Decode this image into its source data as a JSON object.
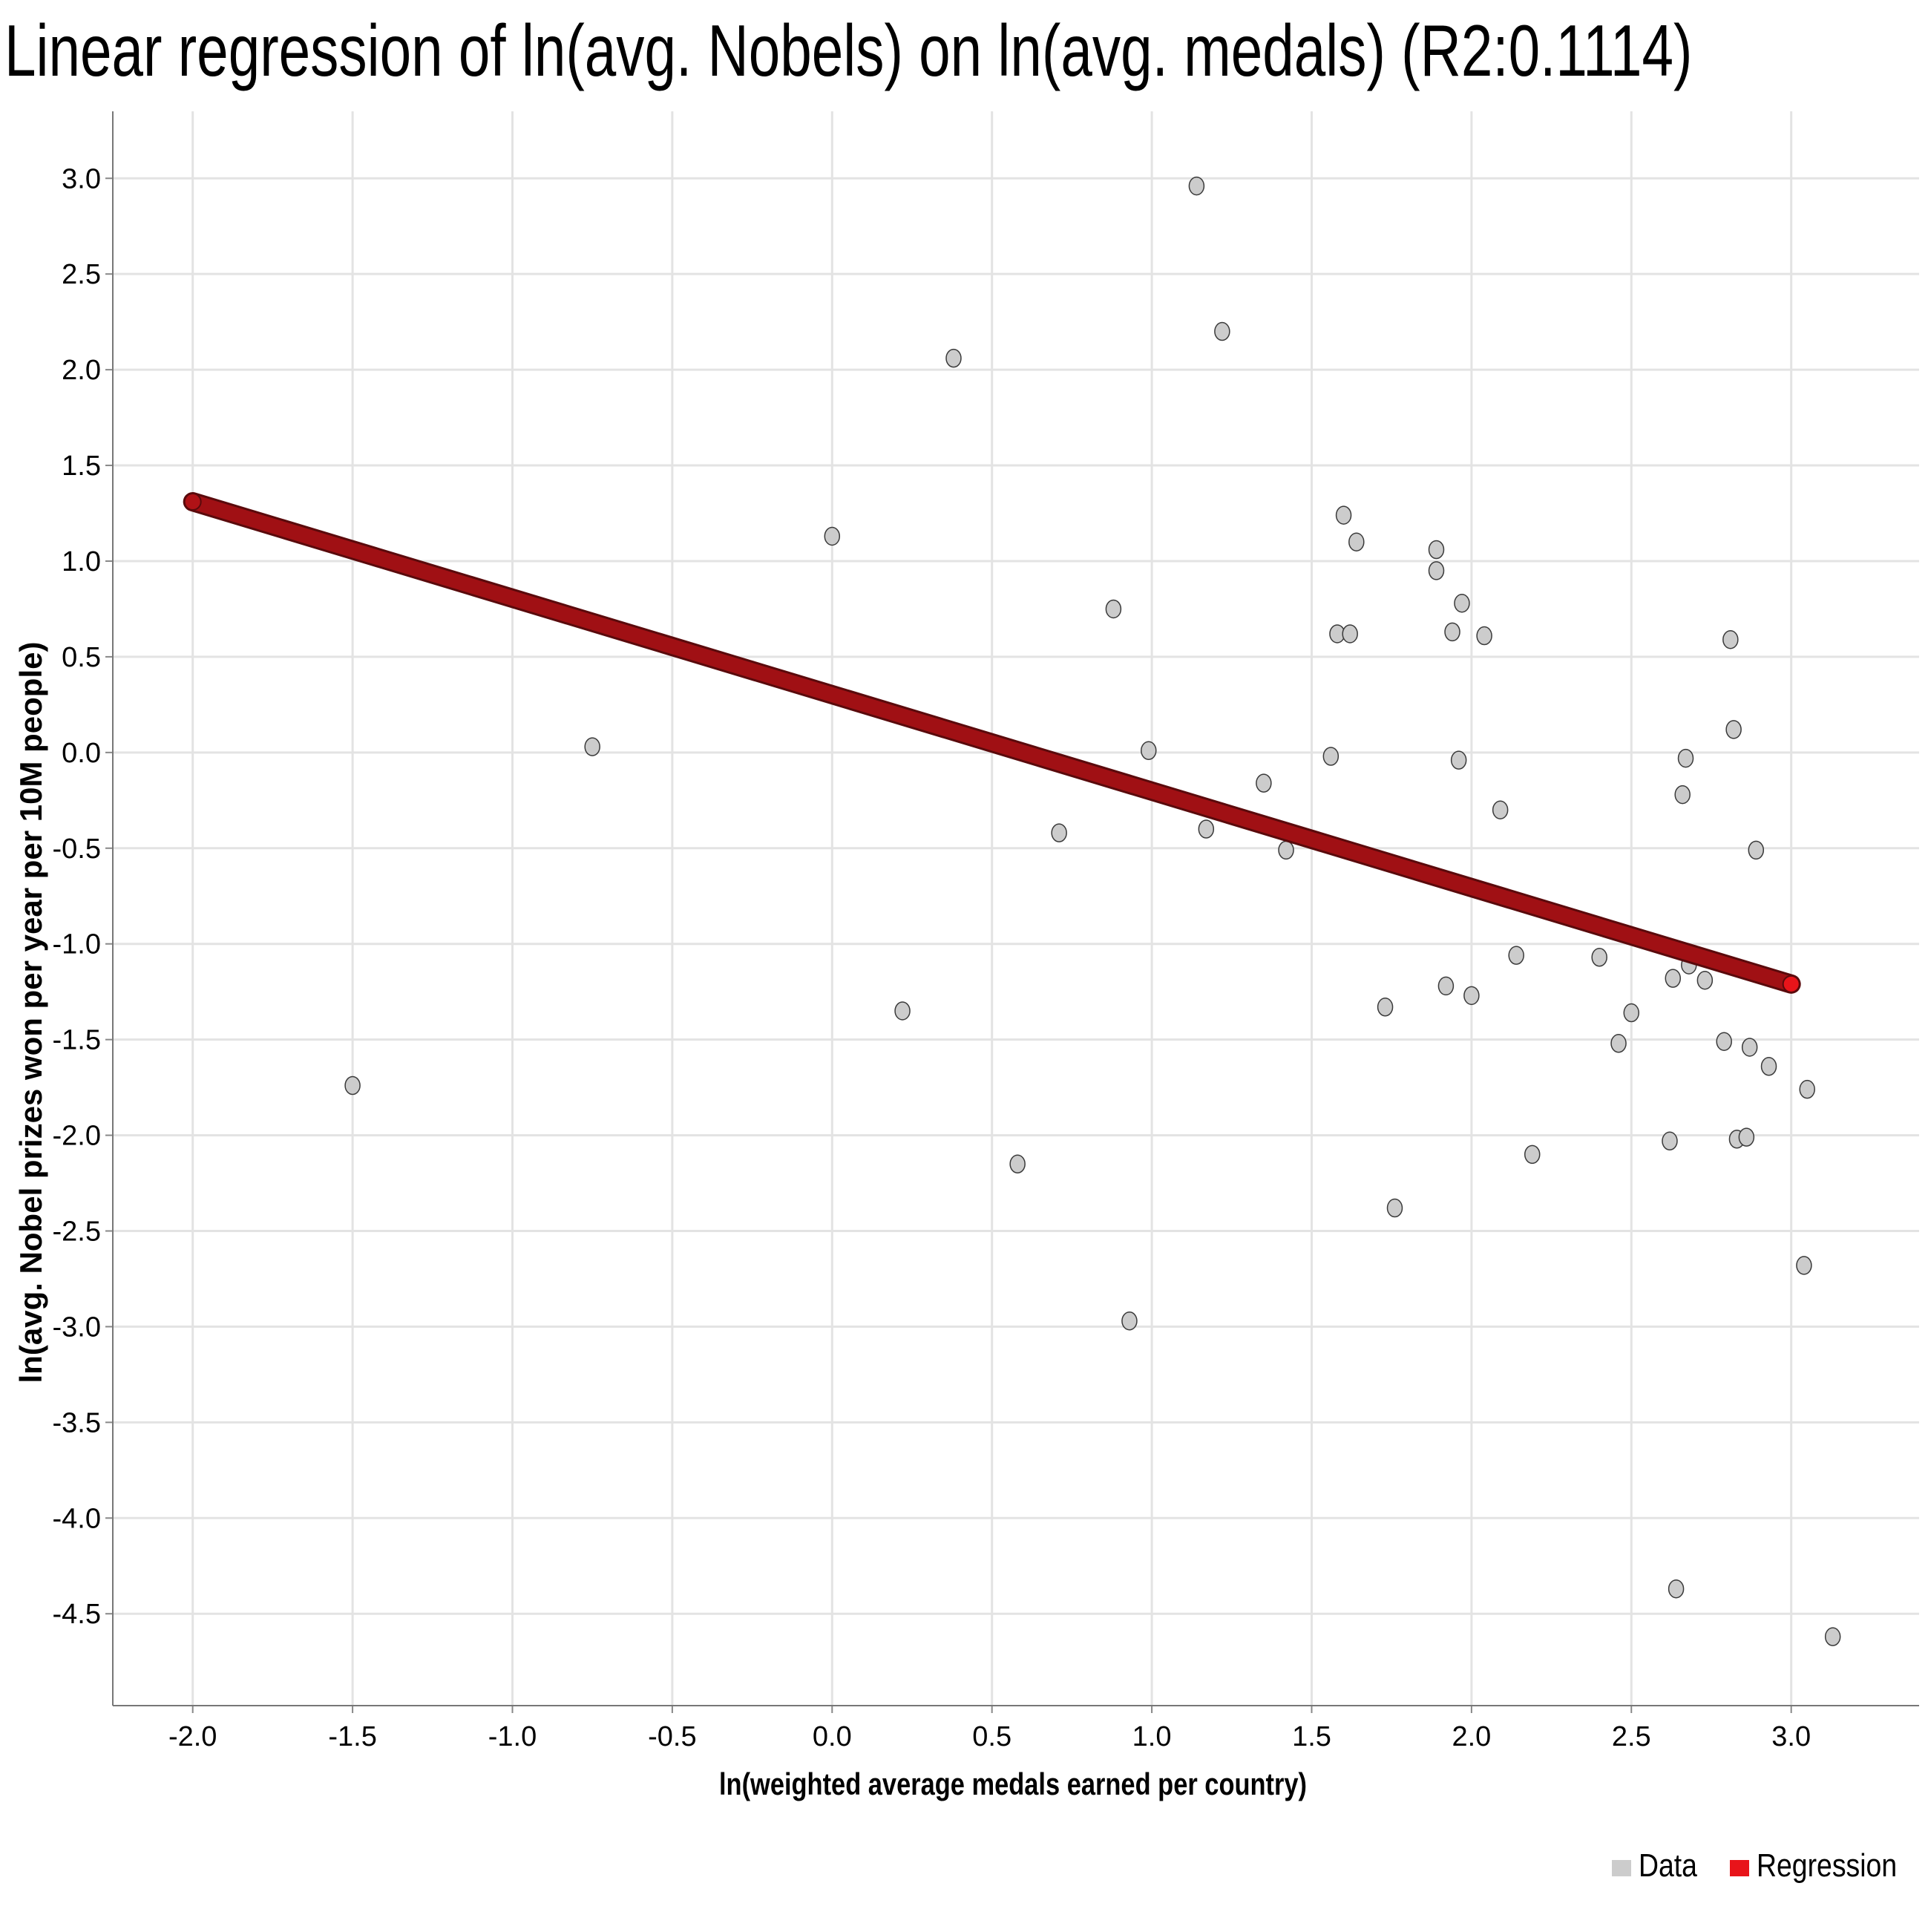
{
  "title": "Linear regression of ln(avg. Nobels) on ln(avg. medals) (R2:0.1114)",
  "chart_data": {
    "type": "scatter",
    "xlabel": "ln(weighted average medals earned per country)",
    "ylabel": "ln(avg. Nobel prizes won per year per 10M people)",
    "xlim": [
      -2.25,
      3.4
    ],
    "ylim": [
      -4.98,
      3.35
    ],
    "x_ticks": [
      -2.0,
      -1.5,
      -1.0,
      -0.5,
      0.0,
      0.5,
      1.0,
      1.5,
      2.0,
      2.5,
      3.0
    ],
    "x_tick_labels": [
      "-2.0",
      "-1.5",
      "-1.0",
      "-0.5",
      "0.0",
      "0.5",
      "1.0",
      "1.5",
      "2.0",
      "2.5",
      "3.0"
    ],
    "y_ticks": [
      3.0,
      2.5,
      2.0,
      1.5,
      1.0,
      0.5,
      0.0,
      -0.5,
      -1.0,
      -1.5,
      -2.0,
      -2.5,
      -3.0,
      -3.5,
      -4.0,
      -4.5
    ],
    "y_tick_labels": [
      "3.0",
      "2.5",
      "2.0",
      "1.5",
      "1.0",
      "0.5",
      "0.0",
      "-0.5",
      "-1.0",
      "-1.5",
      "-2.0",
      "-2.5",
      "-3.0",
      "-3.5",
      "-4.0",
      "-4.5"
    ],
    "grid": true,
    "legend_position": "bottom-right",
    "series": [
      {
        "name": "Data",
        "color": "#cccccc",
        "points": [
          [
            1.14,
            2.96
          ],
          [
            1.22,
            2.2
          ],
          [
            0.38,
            2.06
          ],
          [
            0.0,
            1.13
          ],
          [
            1.6,
            1.24
          ],
          [
            1.64,
            1.1
          ],
          [
            1.89,
            1.06
          ],
          [
            1.89,
            0.95
          ],
          [
            0.88,
            0.75
          ],
          [
            1.97,
            0.78
          ],
          [
            1.58,
            0.62
          ],
          [
            1.62,
            0.62
          ],
          [
            1.94,
            0.63
          ],
          [
            2.04,
            0.61
          ],
          [
            2.81,
            0.59
          ],
          [
            2.82,
            0.12
          ],
          [
            -0.75,
            0.03
          ],
          [
            0.99,
            0.01
          ],
          [
            1.56,
            -0.02
          ],
          [
            1.96,
            -0.04
          ],
          [
            2.67,
            -0.03
          ],
          [
            1.35,
            -0.16
          ],
          [
            2.66,
            -0.22
          ],
          [
            2.09,
            -0.3
          ],
          [
            0.71,
            -0.42
          ],
          [
            1.17,
            -0.4
          ],
          [
            1.42,
            -0.51
          ],
          [
            2.89,
            -0.51
          ],
          [
            2.14,
            -1.06
          ],
          [
            2.4,
            -1.07
          ],
          [
            2.68,
            -1.11
          ],
          [
            2.63,
            -1.18
          ],
          [
            2.73,
            -1.19
          ],
          [
            1.92,
            -1.22
          ],
          [
            2.0,
            -1.27
          ],
          [
            0.22,
            -1.35
          ],
          [
            1.73,
            -1.33
          ],
          [
            2.5,
            -1.36
          ],
          [
            2.46,
            -1.52
          ],
          [
            2.79,
            -1.51
          ],
          [
            2.87,
            -1.54
          ],
          [
            2.93,
            -1.64
          ],
          [
            -1.5,
            -1.74
          ],
          [
            3.05,
            -1.76
          ],
          [
            2.62,
            -2.03
          ],
          [
            2.83,
            -2.02
          ],
          [
            2.86,
            -2.01
          ],
          [
            2.19,
            -2.1
          ],
          [
            0.58,
            -2.15
          ],
          [
            1.76,
            -2.38
          ],
          [
            3.04,
            -2.68
          ],
          [
            0.93,
            -2.97
          ],
          [
            2.64,
            -4.37
          ],
          [
            3.13,
            -4.62
          ]
        ]
      },
      {
        "name": "Regression",
        "color": "#e8141a",
        "line": {
          "x": [
            -2.0,
            3.0
          ],
          "y": [
            1.31,
            -1.21
          ]
        }
      }
    ]
  },
  "legend": {
    "items": [
      {
        "label": "Data",
        "color": "#cccccc"
      },
      {
        "label": "Regression",
        "color": "#e8141a"
      }
    ]
  }
}
